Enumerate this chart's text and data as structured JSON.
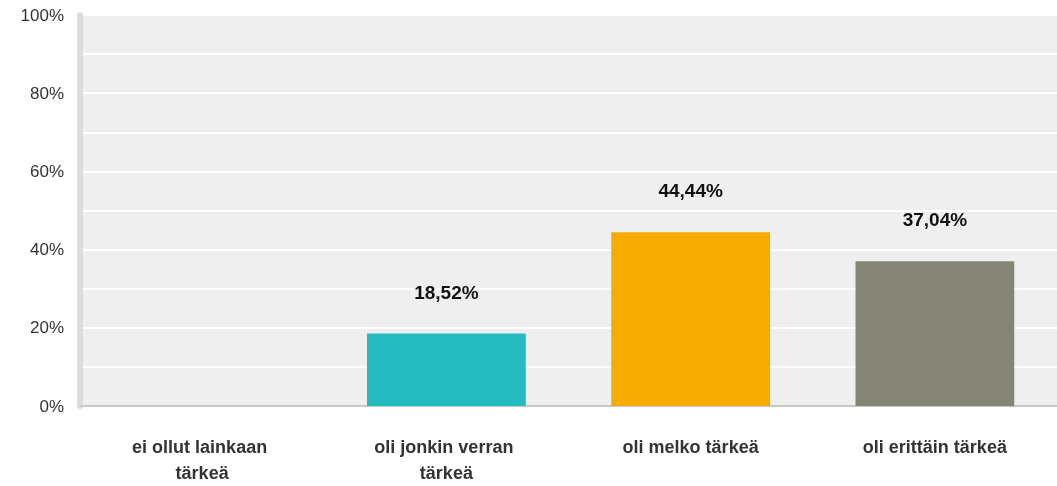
{
  "chart_data": {
    "type": "bar",
    "categories": [
      "ei ollut lainkaan tärkeä",
      "oli jonkin verran tärkeä",
      "oli melko tärkeä",
      "oli erittäin tärkeä"
    ],
    "values": [
      0,
      18.52,
      44.44,
      37.04
    ],
    "colors": [
      "#24bcbf",
      "#24bcbf",
      "#f6ab00",
      "#858576"
    ],
    "value_labels": [
      null,
      "18,52%",
      "44,44%",
      "37,04%"
    ],
    "ylim": [
      0,
      100
    ],
    "yticks": [
      {
        "value": 0,
        "label": "0%"
      },
      {
        "value": 10,
        "label": null
      },
      {
        "value": 20,
        "label": "20%"
      },
      {
        "value": 30,
        "label": null
      },
      {
        "value": 40,
        "label": "40%"
      },
      {
        "value": 50,
        "label": null
      },
      {
        "value": 60,
        "label": "60%"
      },
      {
        "value": 70,
        "label": null
      },
      {
        "value": 80,
        "label": "80%"
      },
      {
        "value": 90,
        "label": null
      },
      {
        "value": 100,
        "label": "100%"
      }
    ],
    "grid": "y"
  }
}
